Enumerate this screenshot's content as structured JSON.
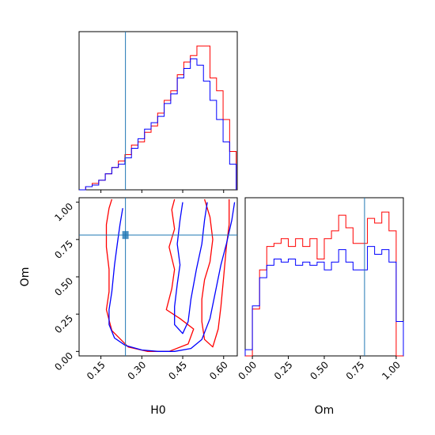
{
  "chart_data": {
    "type": "corner",
    "parameters": [
      "H0",
      "Om"
    ],
    "truth": {
      "H0": 0.24,
      "Om": 0.78
    },
    "colors": {
      "red_series": "#ff0000",
      "blue_series": "#0000ff",
      "truth_line": "#1f77b4"
    },
    "panels": [
      {
        "id": "H0-marginal",
        "type": "histogram",
        "xlim": [
          0.07,
          0.65
        ],
        "show_x_ticks": false,
        "show_y_ticks": false,
        "bin_edges": [
          0.07,
          0.094,
          0.118,
          0.142,
          0.166,
          0.19,
          0.214,
          0.238,
          0.262,
          0.286,
          0.31,
          0.334,
          0.358,
          0.382,
          0.406,
          0.43,
          0.454,
          0.478,
          0.502,
          0.526,
          0.55,
          0.574,
          0.598,
          0.622,
          0.646
        ],
        "series": [
          {
            "name": "",
            "color": "red",
            "counts": [
              0,
              2,
              4,
              6,
              10,
              14,
              18,
              22,
              28,
              30,
              36,
              40,
              48,
              56,
              62,
              72,
              80,
              84,
              90,
              90,
              70,
              62,
              44,
              24
            ]
          },
          {
            "name": "",
            "color": "blue",
            "counts": [
              0,
              2,
              3,
              6,
              10,
              14,
              16,
              20,
              26,
              32,
              38,
              42,
              46,
              54,
              60,
              70,
              76,
              82,
              78,
              68,
              56,
              44,
              30,
              16
            ]
          }
        ]
      },
      {
        "id": "joint",
        "type": "contour",
        "xlabel": "H0",
        "ylabel": "Om",
        "xlim": [
          0.07,
          0.65
        ],
        "ylim": [
          -0.03,
          1.03
        ],
        "xticks": [
          "0.15",
          "0.30",
          "0.45",
          "0.60"
        ],
        "xtick_values": [
          0.15,
          0.3,
          0.45,
          0.6
        ],
        "yticks": [
          "0.00",
          "0.25",
          "0.50",
          "0.75",
          "1.00"
        ],
        "ytick_values": [
          0.0,
          0.25,
          0.5,
          0.75,
          1.0
        ],
        "contours": [
          {
            "color": "red",
            "points": [
              [
                0.19,
                1.02
              ],
              [
                0.18,
                0.96
              ],
              [
                0.17,
                0.85
              ],
              [
                0.17,
                0.7
              ],
              [
                0.18,
                0.55
              ],
              [
                0.18,
                0.4
              ],
              [
                0.17,
                0.28
              ],
              [
                0.19,
                0.14
              ],
              [
                0.25,
                0.03
              ],
              [
                0.32,
                0.0
              ],
              [
                0.4,
                0.0
              ],
              [
                0.47,
                0.05
              ],
              [
                0.49,
                0.15
              ],
              [
                0.44,
                0.22
              ],
              [
                0.39,
                0.28
              ],
              [
                0.41,
                0.42
              ],
              [
                0.42,
                0.55
              ],
              [
                0.4,
                0.7
              ],
              [
                0.42,
                0.82
              ],
              [
                0.41,
                0.95
              ],
              [
                0.42,
                1.02
              ]
            ]
          },
          {
            "color": "red",
            "points": [
              [
                0.53,
                1.02
              ],
              [
                0.55,
                0.9
              ],
              [
                0.56,
                0.75
              ],
              [
                0.55,
                0.6
              ],
              [
                0.53,
                0.48
              ],
              [
                0.52,
                0.35
              ],
              [
                0.52,
                0.2
              ],
              [
                0.53,
                0.08
              ],
              [
                0.56,
                0.03
              ],
              [
                0.58,
                0.15
              ],
              [
                0.59,
                0.3
              ],
              [
                0.6,
                0.5
              ],
              [
                0.61,
                0.7
              ],
              [
                0.62,
                0.85
              ],
              [
                0.62,
                1.02
              ]
            ]
          },
          {
            "color": "blue",
            "points": [
              [
                0.23,
                0.96
              ],
              [
                0.22,
                0.85
              ],
              [
                0.21,
                0.72
              ],
              [
                0.2,
                0.58
              ],
              [
                0.19,
                0.4
              ],
              [
                0.18,
                0.28
              ],
              [
                0.18,
                0.18
              ],
              [
                0.2,
                0.09
              ],
              [
                0.24,
                0.04
              ],
              [
                0.3,
                0.01
              ],
              [
                0.36,
                0.0
              ],
              [
                0.42,
                0.0
              ],
              [
                0.48,
                0.02
              ],
              [
                0.52,
                0.08
              ],
              [
                0.55,
                0.22
              ],
              [
                0.57,
                0.4
              ],
              [
                0.59,
                0.58
              ],
              [
                0.61,
                0.72
              ],
              [
                0.63,
                0.88
              ],
              [
                0.64,
                1.0
              ]
            ]
          },
          {
            "color": "blue",
            "points": [
              [
                0.45,
                1.0
              ],
              [
                0.44,
                0.88
              ],
              [
                0.43,
                0.72
              ],
              [
                0.44,
                0.58
              ],
              [
                0.43,
                0.45
              ],
              [
                0.42,
                0.3
              ],
              [
                0.42,
                0.18
              ],
              [
                0.45,
                0.12
              ],
              [
                0.47,
                0.2
              ],
              [
                0.48,
                0.35
              ],
              [
                0.5,
                0.55
              ],
              [
                0.52,
                0.72
              ],
              [
                0.53,
                0.88
              ],
              [
                0.54,
                1.0
              ]
            ]
          }
        ]
      },
      {
        "id": "Om-marginal",
        "type": "histogram",
        "xlabel": "Om",
        "xlim": [
          -0.05,
          1.05
        ],
        "xticks": [
          "0.00",
          "0.25",
          "0.50",
          "0.75",
          "1.00"
        ],
        "xtick_values": [
          0.0,
          0.25,
          0.5,
          0.75,
          1.0
        ],
        "show_y_ticks": false,
        "bin_edges": [
          -0.05,
          0.0,
          0.05,
          0.1,
          0.15,
          0.2,
          0.25,
          0.3,
          0.35,
          0.4,
          0.45,
          0.5,
          0.55,
          0.6,
          0.65,
          0.7,
          0.75,
          0.8,
          0.85,
          0.9,
          0.95,
          1.0,
          1.05
        ],
        "series": [
          {
            "name": "",
            "color": "red",
            "counts": [
              0,
              30,
              55,
              70,
              72,
              75,
              70,
              75,
              70,
              75,
              62,
              75,
              80,
              90,
              82,
              72,
              72,
              88,
              85,
              92,
              80,
              0
            ]
          },
          {
            "name": "",
            "color": "blue",
            "counts": [
              4,
              32,
              50,
              58,
              62,
              60,
              62,
              58,
              60,
              58,
              60,
              55,
              60,
              68,
              60,
              55,
              55,
              70,
              65,
              68,
              60,
              22
            ]
          }
        ]
      }
    ]
  }
}
